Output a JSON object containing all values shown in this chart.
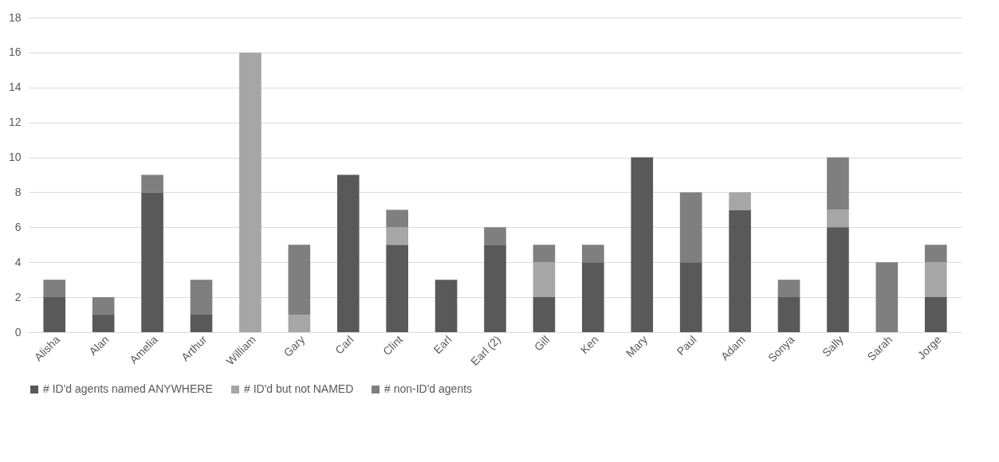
{
  "chart_data": {
    "type": "bar",
    "stacked": true,
    "categories": [
      "Alisha",
      "Alan",
      "Amelia",
      "Arthur",
      "William",
      "Gary",
      "Carl",
      "Clint",
      "Earl",
      "Earl (2)",
      "Gill",
      "Ken",
      "Mary",
      "Paul",
      "Adam",
      "Sonya",
      "Sally",
      "Sarah",
      "Jorge"
    ],
    "series": [
      {
        "name": "# ID'd agents named ANYWHERE",
        "color": "#595959",
        "values": [
          2,
          1,
          8,
          1,
          0,
          0,
          9,
          5,
          3,
          5,
          2,
          4,
          10,
          4,
          7,
          2,
          6,
          0,
          2
        ]
      },
      {
        "name": "# ID'd but not NAMED",
        "color": "#a6a6a6",
        "values": [
          0,
          0,
          0,
          0,
          16,
          1,
          0,
          1,
          0,
          0,
          2,
          0,
          0,
          0,
          1,
          0,
          1,
          0,
          2
        ]
      },
      {
        "name": "# non-ID'd agents",
        "color": "#7f7f7f",
        "values": [
          1,
          1,
          1,
          2,
          0,
          4,
          0,
          1,
          0,
          1,
          1,
          1,
          0,
          4,
          0,
          1,
          3,
          4,
          1
        ]
      }
    ],
    "ylim": [
      0,
      18
    ],
    "yticks": [
      0,
      2,
      4,
      6,
      8,
      10,
      12,
      14,
      16,
      18
    ],
    "grid": "y",
    "legend": "bottom"
  }
}
